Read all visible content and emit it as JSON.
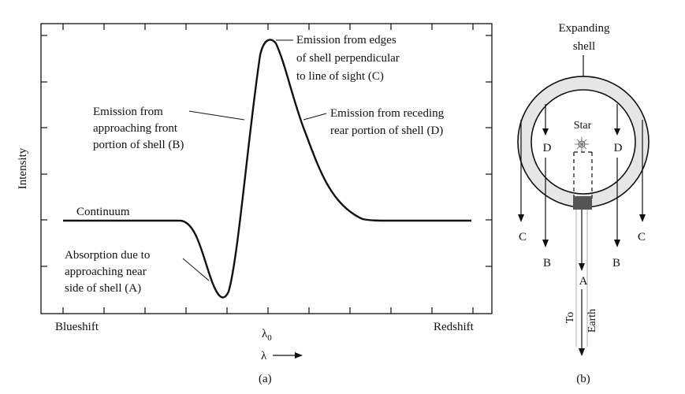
{
  "panel_a": {
    "caption": "(a)",
    "y_axis_label": "Intensity",
    "x_left_label": "Blueshift",
    "x_right_label": "Redshift",
    "lambda0_base": "λ",
    "lambda0_sub": "0",
    "lambda_arrow_label": "λ",
    "continuum_label": "Continuum",
    "absorption_label": [
      "Absorption due to",
      "approaching near",
      "side of shell (A)"
    ],
    "emission_front_label": [
      "Emission from",
      "approaching front",
      "portion of shell (B)"
    ],
    "emission_edges_label": [
      "Emission from edges",
      "of shell perpendicular",
      "to line of sight (C)"
    ],
    "emission_rear_label": [
      "Emission from receding",
      "rear portion of shell (D)"
    ]
  },
  "panel_b": {
    "caption": "(b)",
    "shell_label": [
      "Expanding",
      "shell"
    ],
    "star_label": "Star",
    "to_earth_label": [
      "To",
      "Earth"
    ],
    "letter_d": "D",
    "letter_c": "C",
    "letter_b": "B",
    "letter_a": "A"
  },
  "colors": {
    "line": "#111111",
    "shell_fill": "#e6e6e6",
    "absorbing_patch": "#555555"
  }
}
